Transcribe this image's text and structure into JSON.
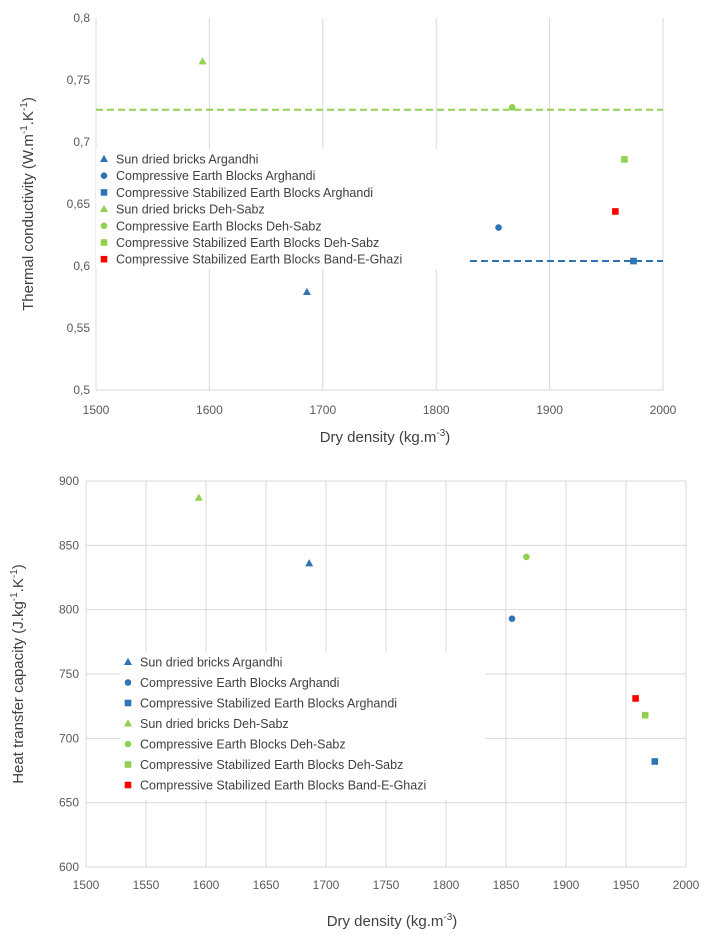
{
  "charts": [
    {
      "type": "scatter",
      "xlim": [
        1500,
        2000
      ],
      "ylim": [
        0.5,
        0.8
      ],
      "x_ticks": [
        1500,
        1600,
        1700,
        1800,
        1900,
        2000
      ],
      "x_tick_labels": [
        "1500",
        "1600",
        "1700",
        "1800",
        "1900",
        "2000"
      ],
      "y_ticks": [
        0.5,
        0.55,
        0.6,
        0.65,
        0.7,
        0.75,
        0.8
      ],
      "y_tick_labels": [
        "0,5",
        "0,55",
        "0,6",
        "0,65",
        "0,7",
        "0,75",
        "0,8"
      ],
      "xlabel": "Dry density (kg.m",
      "xlabel_sup": "-3",
      "xlabel_end": ")",
      "ylabel_parts": [
        {
          "t": "Thermal conductivity  (W.m"
        },
        {
          "t": "-1",
          "sup": true
        },
        {
          "t": ".K"
        },
        {
          "t": "-1",
          "sup": true
        },
        {
          "t": ")"
        }
      ],
      "grid": "vertical",
      "hlines": [
        {
          "y": 0.726,
          "color": "#92D050"
        },
        {
          "y": 0.604,
          "color": "#2E75B6"
        }
      ],
      "series": [
        {
          "name": "Sun dried bricks Argandhi",
          "marker": "triangle",
          "color": "#2E75B6",
          "x": [
            1686
          ],
          "y": [
            0.579
          ]
        },
        {
          "name": "Compressive Earth Blocks Arghandi",
          "marker": "circle",
          "color": "#2E75B6",
          "x": [
            1855
          ],
          "y": [
            0.631
          ]
        },
        {
          "name": "Compressive Stabilized Earth Blocks Arghandi",
          "marker": "square",
          "color": "#2E75B6",
          "x": [
            1974
          ],
          "y": [
            0.604
          ]
        },
        {
          "name": "Sun dried bricks Deh-Sabz",
          "marker": "triangle",
          "color": "#92D050",
          "x": [
            1594
          ],
          "y": [
            0.765
          ]
        },
        {
          "name": "Compressive Earth Blocks Deh-Sabz",
          "marker": "circle",
          "color": "#92D050",
          "x": [
            1867
          ],
          "y": [
            0.728
          ]
        },
        {
          "name": "Compressive Stabilized Earth Blocks Deh-Sabz",
          "marker": "square",
          "color": "#92D050",
          "x": [
            1966
          ],
          "y": [
            0.686
          ]
        },
        {
          "name": "Compressive Stabilized Earth Blocks Band-E-Ghazi",
          "marker": "square",
          "color": "#FF0000",
          "x": [
            1958
          ],
          "y": [
            0.644
          ]
        }
      ]
    },
    {
      "type": "scatter",
      "xlim": [
        1500,
        2000
      ],
      "ylim": [
        600,
        900
      ],
      "x_ticks": [
        1500,
        1550,
        1600,
        1650,
        1700,
        1750,
        1800,
        1850,
        1900,
        1950,
        2000
      ],
      "x_tick_labels": [
        "1500",
        "1550",
        "1600",
        "1650",
        "1700",
        "1750",
        "1800",
        "1850",
        "1900",
        "1950",
        "2000"
      ],
      "y_ticks": [
        600,
        650,
        700,
        750,
        800,
        850,
        900
      ],
      "y_tick_labels": [
        "600",
        "650",
        "700",
        "750",
        "800",
        "850",
        "900"
      ],
      "xlabel": "Dry density (kg.m",
      "xlabel_sup": "-3",
      "xlabel_end": ")",
      "ylabel_parts": [
        {
          "t": "Heat transfer capacity (J.kg"
        },
        {
          "t": "-1",
          "sup": true
        },
        {
          "t": ".K"
        },
        {
          "t": "-1",
          "sup": true
        },
        {
          "t": ")"
        }
      ],
      "grid": "both",
      "hlines": [],
      "series": [
        {
          "name": "Sun dried bricks Argandhi",
          "marker": "triangle",
          "color": "#2E75B6",
          "x": [
            1686
          ],
          "y": [
            836
          ]
        },
        {
          "name": "Compressive Earth Blocks Arghandi",
          "marker": "circle",
          "color": "#2E75B6",
          "x": [
            1855
          ],
          "y": [
            793
          ]
        },
        {
          "name": "Compressive Stabilized Earth Blocks Arghandi",
          "marker": "square",
          "color": "#2E75B6",
          "x": [
            1974
          ],
          "y": [
            682
          ]
        },
        {
          "name": "Sun dried bricks Deh-Sabz",
          "marker": "triangle",
          "color": "#92D050",
          "x": [
            1594
          ],
          "y": [
            887
          ]
        },
        {
          "name": "Compressive Earth Blocks Deh-Sabz",
          "marker": "circle",
          "color": "#92D050",
          "x": [
            1867
          ],
          "y": [
            841
          ]
        },
        {
          "name": "Compressive Stabilized Earth Blocks Deh-Sabz",
          "marker": "square",
          "color": "#92D050",
          "x": [
            1966
          ],
          "y": [
            718
          ]
        },
        {
          "name": "Compressive Stabilized Earth Blocks Band-E-Ghazi",
          "marker": "square",
          "color": "#FF0000",
          "x": [
            1958
          ],
          "y": [
            731
          ]
        }
      ]
    }
  ]
}
